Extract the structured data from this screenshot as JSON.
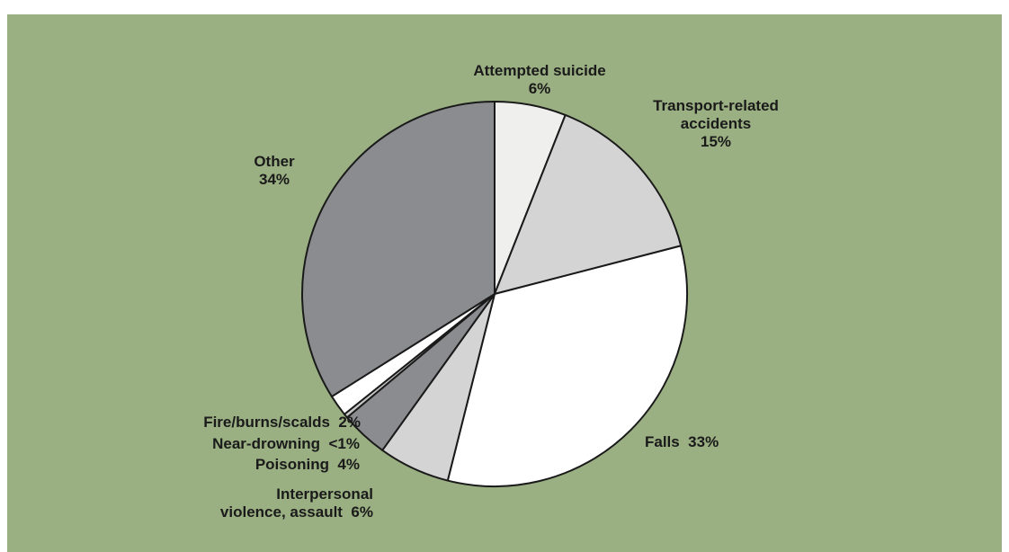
{
  "colors": {
    "background": "#9aaf82",
    "outline": "#1a1a1a"
  },
  "chart_data": {
    "type": "pie",
    "start_angle_deg": 0,
    "direction": "clockwise",
    "slices": [
      {
        "id": "attempted-suicide",
        "lines": [
          "Attempted suicide",
          "6%"
        ],
        "value": 6,
        "color": "#eff0ee"
      },
      {
        "id": "transport",
        "lines": [
          "Transport-related",
          "accidents",
          "15%"
        ],
        "value": 15,
        "color": "#d3d4d3"
      },
      {
        "id": "falls",
        "lines": [
          "Falls  33%"
        ],
        "value": 33,
        "color": "#ffffff"
      },
      {
        "id": "interpersonal-violence",
        "lines": [
          "Interpersonal",
          "violence, assault  6%"
        ],
        "value": 6,
        "color": "#d3d4d3"
      },
      {
        "id": "poisoning",
        "lines": [
          "Poisoning  4%"
        ],
        "value": 4,
        "color": "#8b8c8f"
      },
      {
        "id": "near-drowning",
        "lines": [
          "Near-drowning  <1%"
        ],
        "value": 0.35,
        "color": "#c7c8c7"
      },
      {
        "id": "fire-burns",
        "lines": [
          "Fire/burns/scalds  2%"
        ],
        "value": 1.8,
        "color": "#ffffff"
      },
      {
        "id": "other",
        "lines": [
          "Other",
          "34%"
        ],
        "value": 34,
        "color": "#8b8c8f"
      }
    ]
  }
}
